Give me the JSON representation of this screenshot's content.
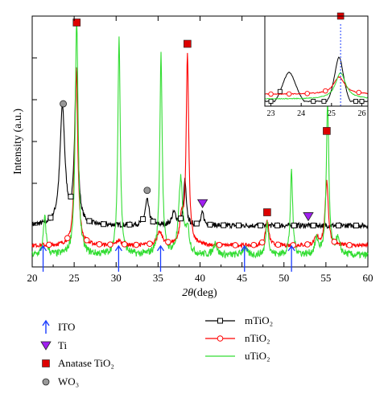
{
  "chart_data": {
    "type": "line",
    "xlabel_symbol": "2θ",
    "xlabel_unit": "(deg)",
    "ylabel": "Intensity (a.u.)",
    "xlim": [
      20,
      60
    ],
    "xticks": [
      "20",
      "25",
      "30",
      "35",
      "40",
      "45",
      "50",
      "55",
      "60"
    ],
    "grid": false,
    "series": [
      {
        "name": "mTiO₂",
        "color": "#000000",
        "marker": "square",
        "baseline": 0.165,
        "peaks": [
          [
            23.6,
            0.47,
            0.35
          ],
          [
            25.25,
            0.62,
            0.22
          ],
          [
            33.7,
            0.1,
            0.28
          ],
          [
            36.9,
            0.05,
            0.3
          ],
          [
            38.2,
            0.18,
            0.18
          ],
          [
            40.3,
            0.05,
            0.2
          ]
        ],
        "marker_x": [
          22.2,
          24.6,
          26.8,
          28.5,
          31.6,
          33.2,
          34.4,
          37.7,
          39.6,
          41.2,
          42.8,
          44.6,
          47.2,
          49.2,
          51.2,
          53.5,
          56.5,
          58.6
        ]
      },
      {
        "name": "nTiO₂",
        "color": "#ff0000",
        "marker": "circle",
        "baseline": 0.085,
        "peaks": [
          [
            25.25,
            0.7,
            0.22
          ],
          [
            30.3,
            0.02,
            0.3
          ],
          [
            35.2,
            0.05,
            0.4
          ],
          [
            38.5,
            0.76,
            0.18
          ],
          [
            37.8,
            0.1,
            0.25
          ],
          [
            48.0,
            0.1,
            0.22
          ],
          [
            53.9,
            0.03,
            0.3
          ],
          [
            55.1,
            0.26,
            0.22
          ]
        ],
        "marker_x": [
          22.0,
          24.2,
          26.5,
          28.0,
          29.3,
          31.0,
          32.4,
          34.0,
          36.2,
          42.3,
          44.2,
          46.4,
          47.4,
          49.3,
          51.1,
          52.8,
          56.0,
          57.8
        ]
      },
      {
        "name": "uTiO₂",
        "color": "#33dd33",
        "marker": "none",
        "baseline": 0.045,
        "peaks": [
          [
            21.5,
            0.15,
            0.2
          ],
          [
            25.3,
            0.94,
            0.2
          ],
          [
            30.35,
            0.88,
            0.17
          ],
          [
            35.35,
            0.8,
            0.17
          ],
          [
            37.7,
            0.3,
            0.28
          ],
          [
            38.5,
            0.1,
            0.25
          ],
          [
            41.8,
            0.05,
            0.25
          ],
          [
            45.3,
            0.03,
            0.3
          ],
          [
            48.0,
            0.13,
            0.2
          ],
          [
            50.9,
            0.33,
            0.17
          ],
          [
            53.9,
            0.06,
            0.25
          ],
          [
            55.2,
            0.6,
            0.18
          ],
          [
            56.4,
            0.06,
            0.3
          ]
        ]
      }
    ],
    "annotations": {
      "ito_arrows": [
        21.3,
        30.3,
        35.3,
        45.3,
        50.9
      ],
      "ti_markers": [
        40.3,
        52.9
      ],
      "anatase_markers": [
        25.3,
        38.5,
        48.0,
        55.1
      ],
      "wo3_markers": [
        23.7,
        33.7
      ]
    },
    "inset": {
      "xlim": [
        22.8,
        26.2
      ],
      "xticks": [
        "23",
        "24",
        "25",
        "26"
      ],
      "dashed_line_x": 25.3,
      "anatase_marker_x": 25.3
    },
    "legend": {
      "symbols": [
        {
          "key": "ito",
          "label": "ITO",
          "color": "#1a3cff"
        },
        {
          "key": "ti",
          "label": "Ti",
          "color": "#a020f0"
        },
        {
          "key": "anatase",
          "label": "Anatase TiO₂",
          "color": "#dd0000"
        },
        {
          "key": "wo3",
          "label": "WO₃",
          "color": "#999999"
        }
      ],
      "lines": [
        {
          "label": "mTiO₂",
          "color": "#000000",
          "marker": "square"
        },
        {
          "label": "nTiO₂",
          "color": "#ff0000",
          "marker": "circle"
        },
        {
          "label": "uTiO₂",
          "color": "#33dd33",
          "marker": "none"
        }
      ]
    }
  }
}
